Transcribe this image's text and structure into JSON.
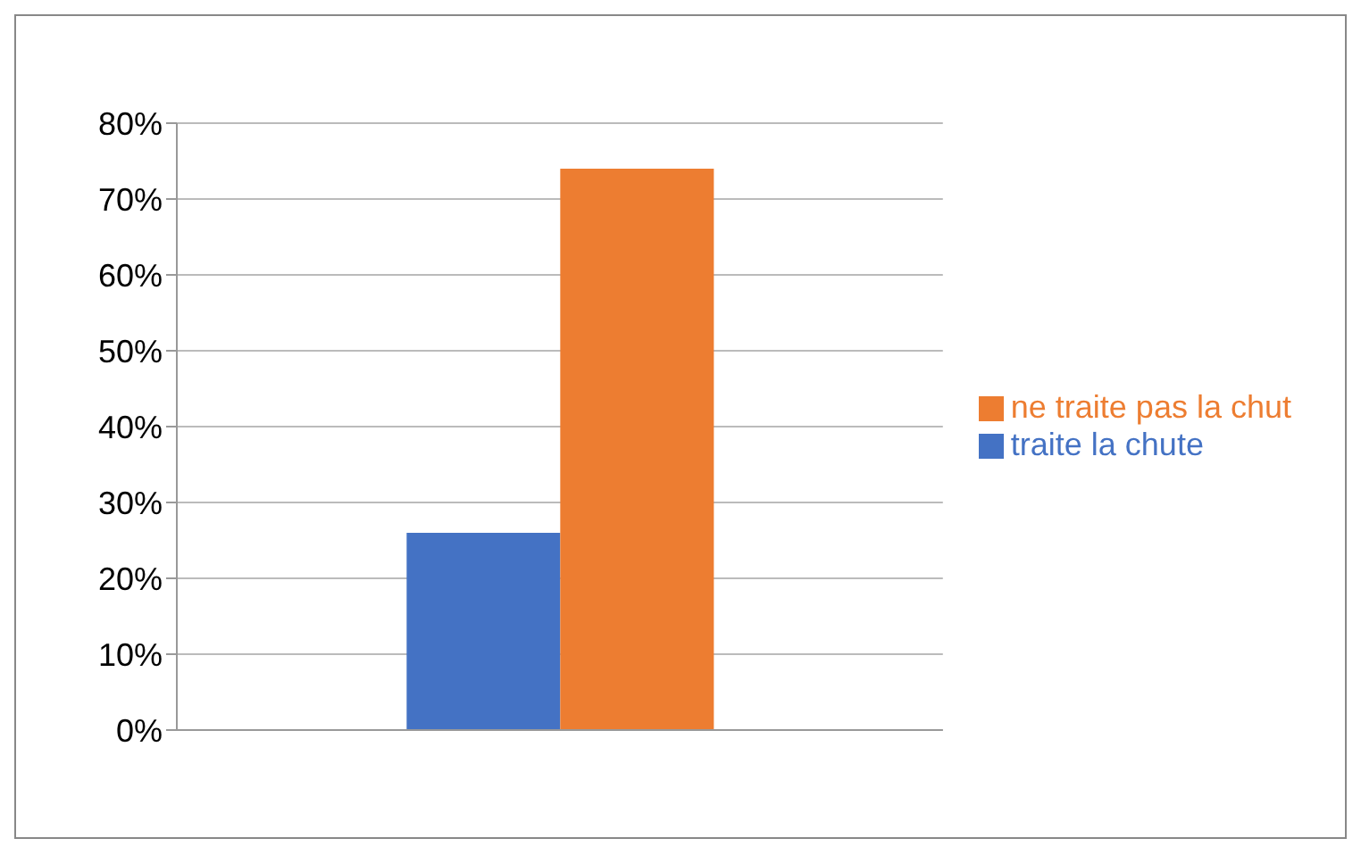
{
  "chart_data": {
    "type": "bar",
    "categories": [
      null
    ],
    "series": [
      {
        "name": "traite la chute",
        "color": "#4472c4",
        "values": [
          26
        ]
      },
      {
        "name": "ne traite pas la chut",
        "color": "#ed7d31",
        "values": [
          74
        ]
      }
    ],
    "ylim": [
      0,
      80
    ],
    "yticks": [
      {
        "value": 0,
        "label": "0%"
      },
      {
        "value": 10,
        "label": "10%"
      },
      {
        "value": 20,
        "label": "20%"
      },
      {
        "value": 30,
        "label": "30%"
      },
      {
        "value": 40,
        "label": "40%"
      },
      {
        "value": 50,
        "label": "50%"
      },
      {
        "value": 60,
        "label": "60%"
      },
      {
        "value": 70,
        "label": "70%"
      },
      {
        "value": 80,
        "label": "80%"
      }
    ],
    "grid": "y",
    "legend": "right"
  }
}
